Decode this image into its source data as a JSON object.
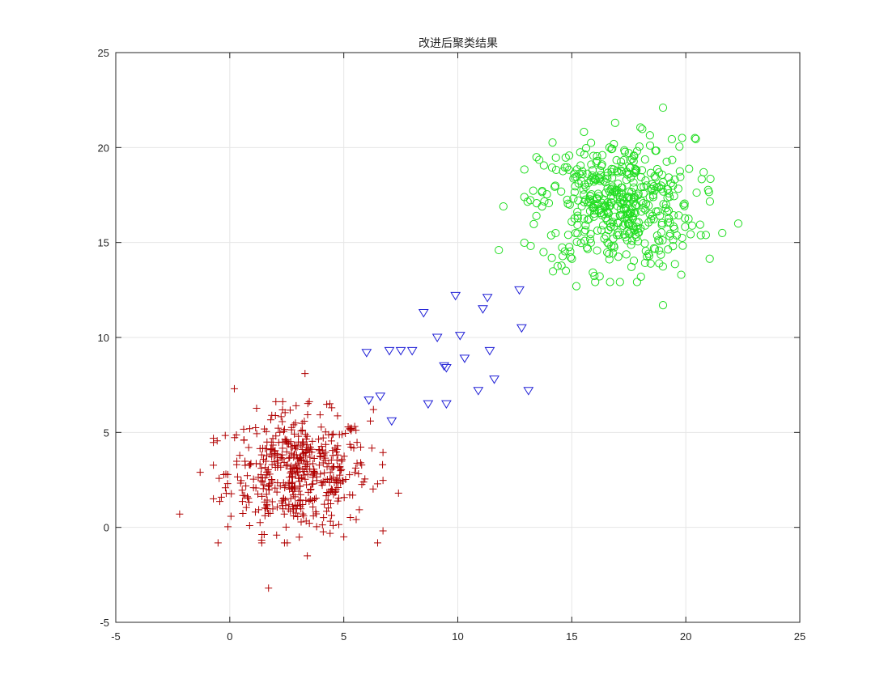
{
  "chart_data": {
    "type": "scatter",
    "title": "改进后聚类结果",
    "xlabel": "",
    "ylabel": "",
    "xlim": [
      -5,
      25
    ],
    "ylim": [
      -5,
      25
    ],
    "xticks": [
      -5,
      0,
      5,
      10,
      15,
      20,
      25
    ],
    "yticks": [
      -5,
      0,
      5,
      10,
      15,
      20,
      25
    ],
    "grid": true,
    "legend": "none",
    "series": [
      {
        "marker": "plus",
        "color": "#b00000",
        "cluster_center": [
          3.0,
          2.9
        ],
        "spread": 1.55,
        "count": 500,
        "points": [
          [
            -2.2,
            0.7
          ],
          [
            1.7,
            -3.2
          ],
          [
            3.3,
            8.1
          ],
          [
            3.4,
            -1.5
          ],
          [
            6.3,
            6.2
          ],
          [
            7.4,
            1.8
          ],
          [
            0.2,
            7.3
          ],
          [
            -1.3,
            2.9
          ],
          [
            6.7,
            3.3
          ],
          [
            5.0,
            -0.5
          ]
        ]
      },
      {
        "marker": "triangle-down",
        "color": "#1f1fd6",
        "points": [
          [
            6.0,
            9.2
          ],
          [
            6.1,
            6.7
          ],
          [
            6.6,
            6.9
          ],
          [
            7.0,
            9.3
          ],
          [
            7.1,
            5.6
          ],
          [
            7.5,
            9.3
          ],
          [
            8.0,
            9.3
          ],
          [
            8.5,
            11.3
          ],
          [
            8.7,
            6.5
          ],
          [
            9.1,
            10.0
          ],
          [
            9.4,
            8.5
          ],
          [
            9.5,
            8.4
          ],
          [
            9.5,
            6.5
          ],
          [
            9.9,
            12.2
          ],
          [
            10.1,
            10.1
          ],
          [
            10.3,
            8.9
          ],
          [
            10.9,
            7.2
          ],
          [
            11.1,
            11.5
          ],
          [
            11.3,
            12.1
          ],
          [
            11.4,
            9.3
          ],
          [
            11.6,
            7.8
          ],
          [
            12.7,
            12.5
          ],
          [
            12.8,
            10.5
          ],
          [
            13.1,
            7.2
          ]
        ]
      },
      {
        "marker": "circle",
        "color": "#22dd22",
        "cluster_center": [
          17.0,
          17.0
        ],
        "spread": 1.7,
        "count": 480,
        "points": [
          [
            11.8,
            14.6
          ],
          [
            12.0,
            16.9
          ],
          [
            19.0,
            22.1
          ],
          [
            19.0,
            11.7
          ],
          [
            22.3,
            16.0
          ],
          [
            21.6,
            15.5
          ],
          [
            20.4,
            20.5
          ],
          [
            16.9,
            21.3
          ],
          [
            15.2,
            12.7
          ],
          [
            19.8,
            13.3
          ]
        ]
      }
    ]
  }
}
